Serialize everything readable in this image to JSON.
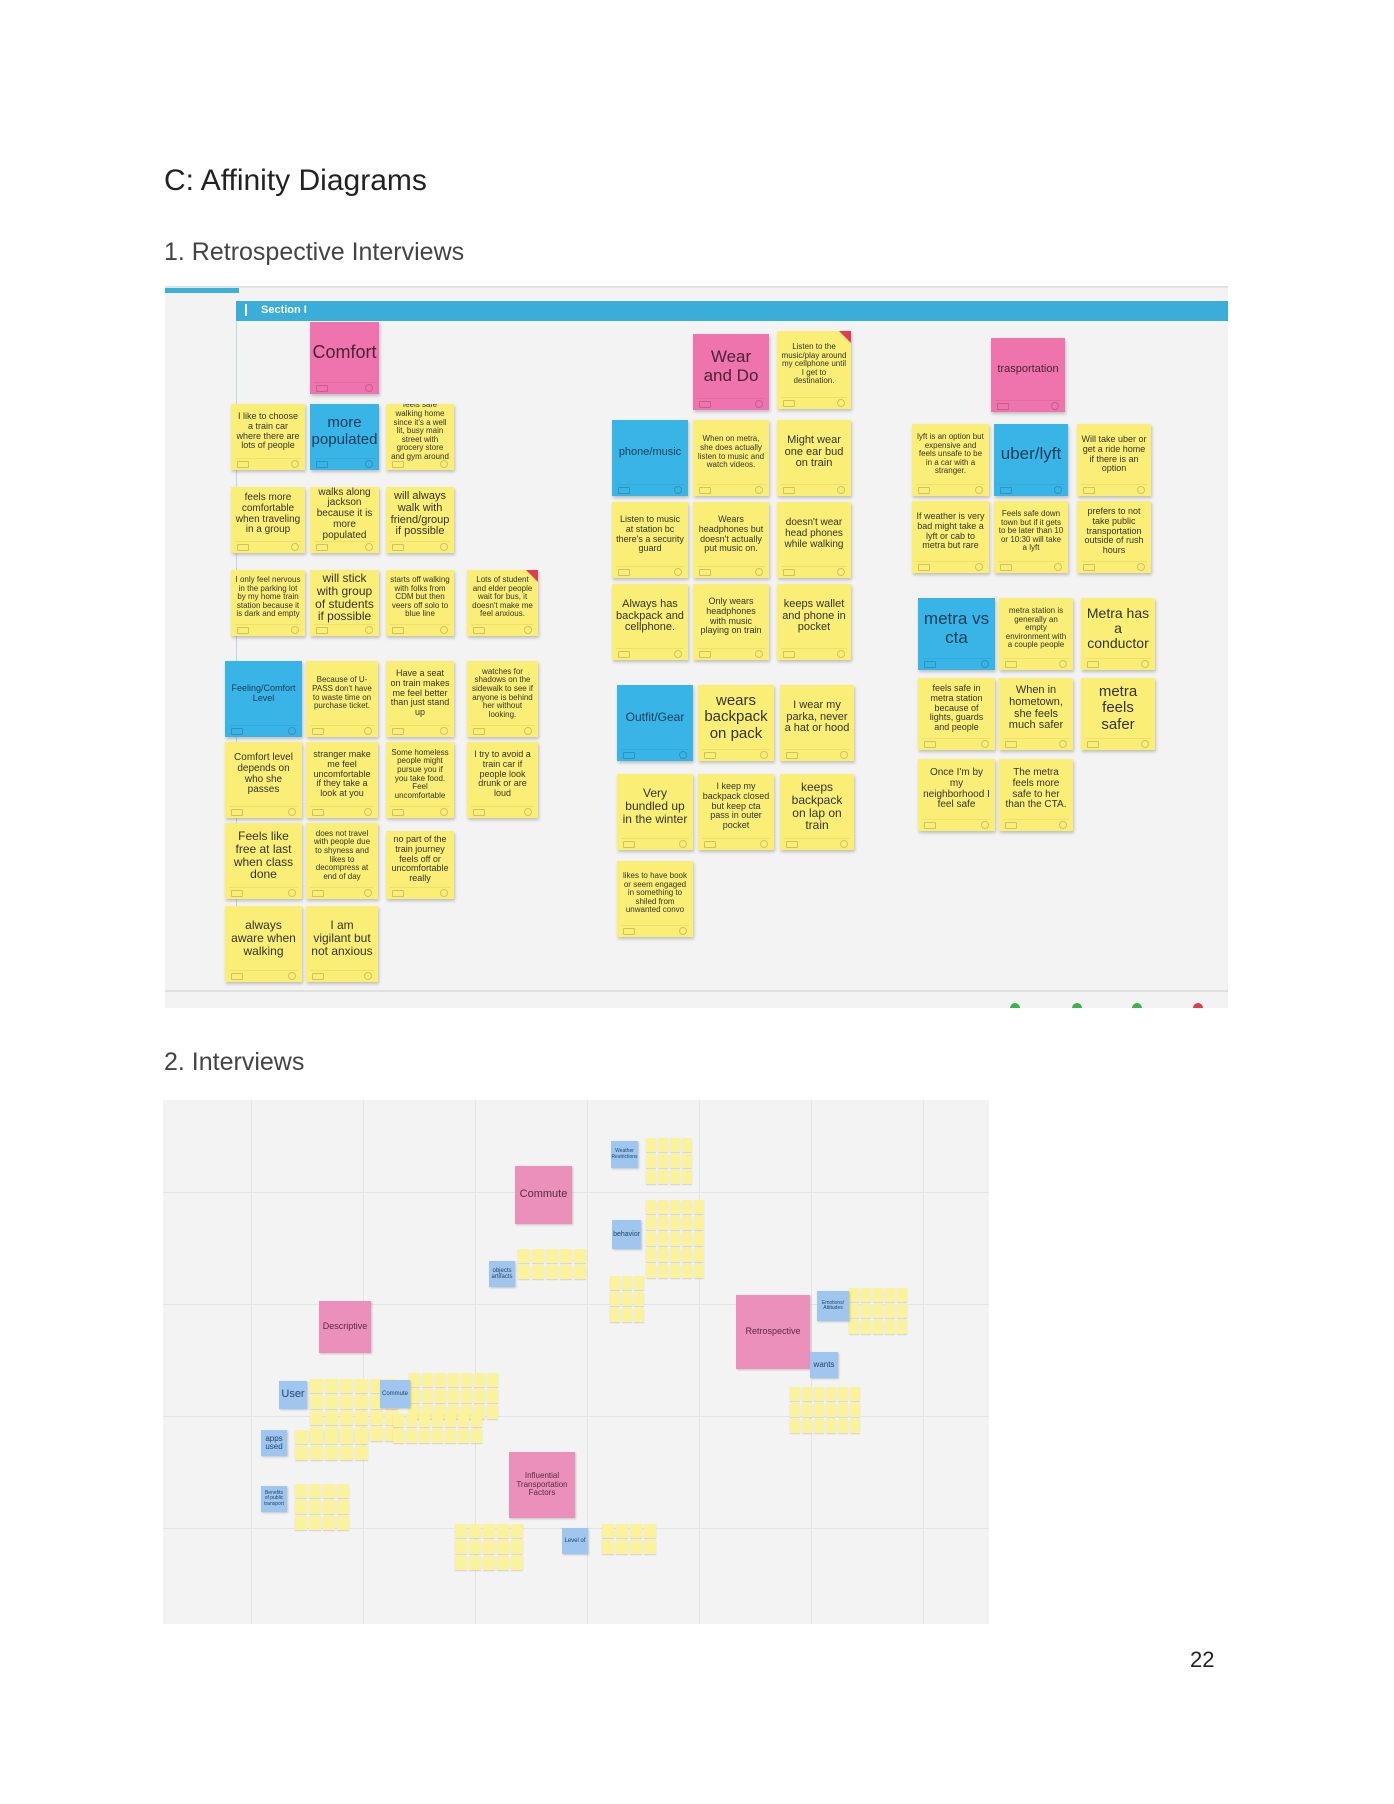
{
  "document": {
    "heading": "C: Affinity Diagrams",
    "section1": "1. Retrospective Interviews",
    "section2": "2. Interviews",
    "page_number": "22"
  },
  "board1": {
    "section_label": "Section I",
    "colors": {
      "yellow": "#fbee76",
      "blue": "#39b4e6",
      "pink": "#ef73ad"
    },
    "notes": [
      {
        "text": "Comfort",
        "kind": "pink",
        "size": 18
      },
      {
        "text": "I like to choose a train car where there are lots of people",
        "kind": "yellow",
        "size": 9
      },
      {
        "text": "more populated",
        "kind": "blue",
        "size": 15
      },
      {
        "text": "feels safe walking home since it's a well lit, busy main street with grocery store and gym around",
        "kind": "yellow",
        "size": 8
      },
      {
        "text": "feels more comfortable when traveling in a group",
        "kind": "yellow",
        "size": 10
      },
      {
        "text": "walks along jackson because it is more populated",
        "kind": "yellow",
        "size": 10
      },
      {
        "text": "will always walk with friend/group if possible",
        "kind": "yellow",
        "size": 11
      },
      {
        "text": "I only feel nervous in the parking lot by my home train station because it is dark and empty",
        "kind": "yellow",
        "size": 8
      },
      {
        "text": "will stick with group of students if possible",
        "kind": "yellow",
        "size": 12
      },
      {
        "text": "starts off walking with folks from CDM but then veers off solo to blue line",
        "kind": "yellow",
        "size": 8
      },
      {
        "text": "Lots of student and elder people wait for bus, it doesn't make me feel anxious.",
        "kind": "yellow",
        "size": 8,
        "flag": true
      },
      {
        "text": "Feeling/Comfort Level",
        "kind": "blue",
        "size": 9
      },
      {
        "text": "Because of U-PASS don't have to waste time on purchase ticket.",
        "kind": "yellow",
        "size": 8
      },
      {
        "text": "Have a seat on train makes me feel better than just stand up",
        "kind": "yellow",
        "size": 9
      },
      {
        "text": "watches for shadows on the sidewalk to see if anyone is behind her without looking.",
        "kind": "yellow",
        "size": 8
      },
      {
        "text": "Comfort level depends on who she passes",
        "kind": "yellow",
        "size": 10
      },
      {
        "text": "stranger make me feel uncomfortable if they take a look at you",
        "kind": "yellow",
        "size": 9
      },
      {
        "text": "Some homeless people might pursue you if you take food. Feel uncomfortable",
        "kind": "yellow",
        "size": 8
      },
      {
        "text": "I try to avoid a train car if people look drunk or are loud",
        "kind": "yellow",
        "size": 9
      },
      {
        "text": "Feels like free at last when class done",
        "kind": "yellow",
        "size": 12
      },
      {
        "text": "does not travel with people due to shyness and likes to decompress at end of day",
        "kind": "yellow",
        "size": 8
      },
      {
        "text": "no part of the train journey feels off or uncomfortable really",
        "kind": "yellow",
        "size": 9
      },
      {
        "text": "always aware when walking",
        "kind": "yellow",
        "size": 12
      },
      {
        "text": "I am vigilant but not anxious",
        "kind": "yellow",
        "size": 12
      },
      {
        "text": "Wear and Do",
        "kind": "pink",
        "size": 17
      },
      {
        "text": "Listen to the music/play around my cellphone until I get to destination.",
        "kind": "yellow",
        "size": 8,
        "flag": true
      },
      {
        "text": "phone/music",
        "kind": "blue",
        "size": 11
      },
      {
        "text": "When on metra, she does actually listen to music and watch videos.",
        "kind": "yellow",
        "size": 8
      },
      {
        "text": "Might wear one ear bud on train",
        "kind": "yellow",
        "size": 11
      },
      {
        "text": "Listen to music at station bc there's a security guard",
        "kind": "yellow",
        "size": 9
      },
      {
        "text": "Wears headphones but doesn't actually put music on.",
        "kind": "yellow",
        "size": 9
      },
      {
        "text": "doesn't wear head phones while walking",
        "kind": "yellow",
        "size": 10
      },
      {
        "text": "Always has backpack and cellphone.",
        "kind": "yellow",
        "size": 11
      },
      {
        "text": "Only wears headphones with music playing on train",
        "kind": "yellow",
        "size": 9
      },
      {
        "text": "keeps wallet and phone in pocket",
        "kind": "yellow",
        "size": 11
      },
      {
        "text": "Outfit/Gear",
        "kind": "blue",
        "size": 12
      },
      {
        "text": "wears backpack on pack",
        "kind": "yellow",
        "size": 15
      },
      {
        "text": "I wear my parka, never a hat or hood",
        "kind": "yellow",
        "size": 11
      },
      {
        "text": "Very bundled up in the winter",
        "kind": "yellow",
        "size": 12
      },
      {
        "text": "I keep my backpack closed but keep cta pass in outer pocket",
        "kind": "yellow",
        "size": 9
      },
      {
        "text": "keeps backpack on lap on train",
        "kind": "yellow",
        "size": 12
      },
      {
        "text": "likes to have book or seem engaged in something to shiled from unwanted convo",
        "kind": "yellow",
        "size": 8
      },
      {
        "text": "trasportation",
        "kind": "pink",
        "size": 11
      },
      {
        "text": "lyft is an option but expensive and feels unsafe to be in a car with a stranger.",
        "kind": "yellow",
        "size": 8
      },
      {
        "text": "uber/lyft",
        "kind": "blue",
        "size": 17
      },
      {
        "text": "Will take uber or get a ride home if there is an option",
        "kind": "yellow",
        "size": 9
      },
      {
        "text": "If weather is very bad might take a lyft or cab to metra but rare",
        "kind": "yellow",
        "size": 9
      },
      {
        "text": "Feels safe down town but if it gets to be later than 10 or 10:30 will take a lyft",
        "kind": "yellow",
        "size": 8
      },
      {
        "text": "prefers to not take public transportation outside of rush hours",
        "kind": "yellow",
        "size": 9
      },
      {
        "text": "metra vs cta",
        "kind": "blue",
        "size": 17
      },
      {
        "text": "metra station is generally an empty environment with a couple people",
        "kind": "yellow",
        "size": 8
      },
      {
        "text": "Metra has a conductor",
        "kind": "yellow",
        "size": 14
      },
      {
        "text": "feels safe in metra station because of lights, guards and people",
        "kind": "yellow",
        "size": 9
      },
      {
        "text": "When in hometown, she feels much safer",
        "kind": "yellow",
        "size": 11
      },
      {
        "text": "metra feels safer",
        "kind": "yellow",
        "size": 15
      },
      {
        "text": "Once I'm by my neighborhood I feel safe",
        "kind": "yellow",
        "size": 10
      },
      {
        "text": "The metra feels more safe to her than the CTA.",
        "kind": "yellow",
        "size": 10
      }
    ]
  },
  "board2": {
    "headers": [
      {
        "text": "Commute",
        "kind": "pink"
      },
      {
        "text": "Descriptive",
        "kind": "pink"
      },
      {
        "text": "Retrospective",
        "kind": "pink"
      },
      {
        "text": "Influential Transportation Factors",
        "kind": "pink"
      },
      {
        "text": "behavior",
        "kind": "blue"
      },
      {
        "text": "objects artifacts",
        "kind": "blue"
      },
      {
        "text": "User",
        "kind": "blue"
      },
      {
        "text": "Commute",
        "kind": "blue"
      },
      {
        "text": "apps used",
        "kind": "blue"
      },
      {
        "text": "wants",
        "kind": "blue"
      },
      {
        "text": "Benefits of public transport",
        "kind": "blue"
      },
      {
        "text": "Emotions/ Attitudes",
        "kind": "blue"
      },
      {
        "text": "Weather Restrictions",
        "kind": "blue"
      },
      {
        "text": "Level of",
        "kind": "blue"
      }
    ]
  }
}
